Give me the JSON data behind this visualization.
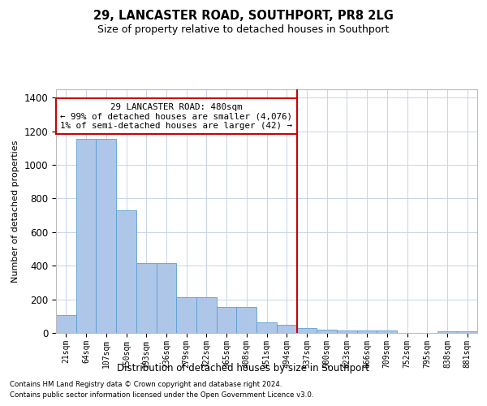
{
  "title": "29, LANCASTER ROAD, SOUTHPORT, PR8 2LG",
  "subtitle": "Size of property relative to detached houses in Southport",
  "xlabel": "Distribution of detached houses by size in Southport",
  "ylabel": "Number of detached properties",
  "categories": [
    "21sqm",
    "64sqm",
    "107sqm",
    "150sqm",
    "193sqm",
    "236sqm",
    "279sqm",
    "322sqm",
    "365sqm",
    "408sqm",
    "451sqm",
    "494sqm",
    "537sqm",
    "580sqm",
    "623sqm",
    "666sqm",
    "709sqm",
    "752sqm",
    "795sqm",
    "838sqm",
    "881sqm"
  ],
  "values": [
    105,
    1155,
    1155,
    730,
    415,
    415,
    215,
    215,
    155,
    155,
    65,
    50,
    30,
    20,
    15,
    15,
    15,
    0,
    0,
    10,
    10
  ],
  "bar_color": "#aec6e8",
  "bar_edge_color": "#5a9fd4",
  "vline_x": 11.5,
  "vline_color": "#cc0000",
  "annotation_text": "29 LANCASTER ROAD: 480sqm\n← 99% of detached houses are smaller (4,076)\n1% of semi-detached houses are larger (42) →",
  "annotation_box_color": "#cc0000",
  "ylim": [
    0,
    1450
  ],
  "yticks": [
    0,
    200,
    400,
    600,
    800,
    1000,
    1200,
    1400
  ],
  "background_color": "#ffffff",
  "grid_color": "#c8d4e8",
  "footer_line1": "Contains HM Land Registry data © Crown copyright and database right 2024.",
  "footer_line2": "Contains public sector information licensed under the Open Government Licence v3.0."
}
